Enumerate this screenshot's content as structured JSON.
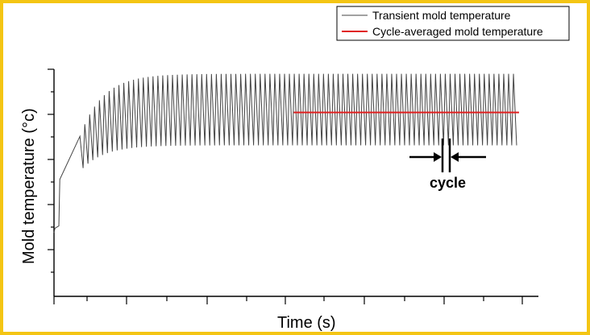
{
  "chart_data": {
    "type": "line",
    "xlabel": "Time (s)",
    "ylabel": "Mold temperature (°c)",
    "xlim": [
      0,
      1
    ],
    "ylim": [
      0,
      1
    ],
    "x_ticks_shown": false,
    "y_ticks_shown": false,
    "grid": false,
    "legend_position": "top-right",
    "series": [
      {
        "name": "Transient mold temperature",
        "color": "#444444",
        "style": "oscillating",
        "initial_level": 0.3,
        "cycles": 90,
        "cycle_start_x": 0.05,
        "cycle_end_x": 0.955,
        "steady_max": 0.98,
        "steady_min": 0.665,
        "startup_max": 0.705,
        "startup_min": 0.565,
        "settle_rate": 14
      },
      {
        "name": "Cycle-averaged mold temperature",
        "color": "#e02020",
        "style": "flat",
        "x": [
          0.495,
          0.96
        ],
        "y": [
          0.81,
          0.81
        ]
      }
    ],
    "annotation": {
      "text": "cycle",
      "marker": "two-arrow cycle width indicator"
    }
  }
}
